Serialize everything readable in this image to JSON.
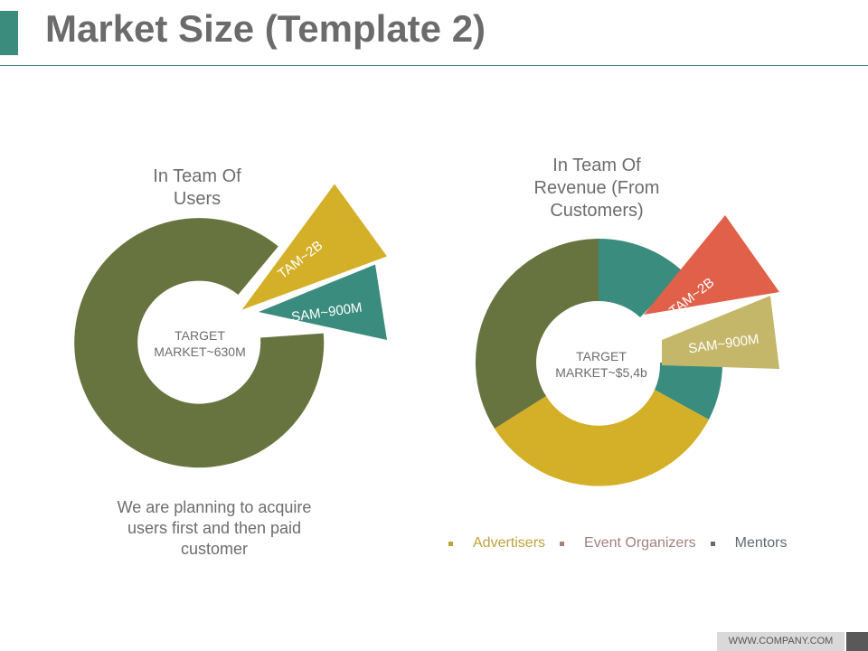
{
  "slide": {
    "title": "Market Size (Template 2)",
    "footer": "WWW.COMPANY.COM",
    "caption": "We are planning to acquire users first and then paid customer"
  },
  "colors": {
    "accent": "#3c8c7e",
    "olive": "#68743f",
    "mustard": "#d4b028",
    "teal": "#3a8c7e",
    "coral": "#e0604a",
    "khaki": "#c5b76a"
  },
  "charts": [
    {
      "title_lines": [
        "In Team Of",
        "Users"
      ],
      "center_lines": [
        "TARGET",
        "MARKET~630M"
      ],
      "callouts": [
        {
          "label": "TAM~2B",
          "color": "#d4b028"
        },
        {
          "label": "SAM~900M",
          "color": "#3a8c7e"
        }
      ]
    },
    {
      "title_lines": [
        "In Team Of",
        "Revenue (From",
        "Customers)"
      ],
      "center_lines": [
        "TARGET",
        "MARKET~$5,4b"
      ],
      "callouts": [
        {
          "label": "TAM~2B",
          "color": "#e0604a"
        },
        {
          "label": "SAM~900M",
          "color": "#c5b76a"
        }
      ]
    }
  ],
  "legend": [
    {
      "label": "Advertisers",
      "color": "#bfa23a"
    },
    {
      "label": "Event Organizers",
      "color": "#a0837a"
    },
    {
      "label": "Mentors",
      "color": "#5f6b73"
    }
  ]
}
